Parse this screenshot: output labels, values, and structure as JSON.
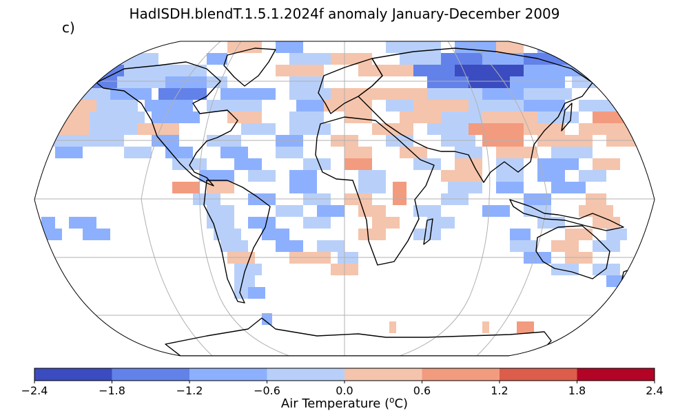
{
  "title": "HadISDH.blendT.1.5.1.2024f anomaly January-December 2009",
  "panel_label": "c)",
  "colorbar": {
    "title_prefix": "Air Temperature (",
    "title_sup": "o",
    "title_suffix": "C)",
    "ticks": [
      "−2.4",
      "−1.8",
      "−1.2",
      "−0.6",
      "0.0",
      "0.6",
      "1.2",
      "1.8",
      "2.4"
    ],
    "bin_colors": [
      "#3b4cc0",
      "#6282ea",
      "#8db0fe",
      "#b8d0f9",
      "#f5c4ac",
      "#f39b7f",
      "#dc5d4a",
      "#b40426"
    ]
  },
  "map": {
    "projection": "Robinson",
    "land_outline_color": "#000000",
    "gridline_color": "#b0b0b0"
  }
}
